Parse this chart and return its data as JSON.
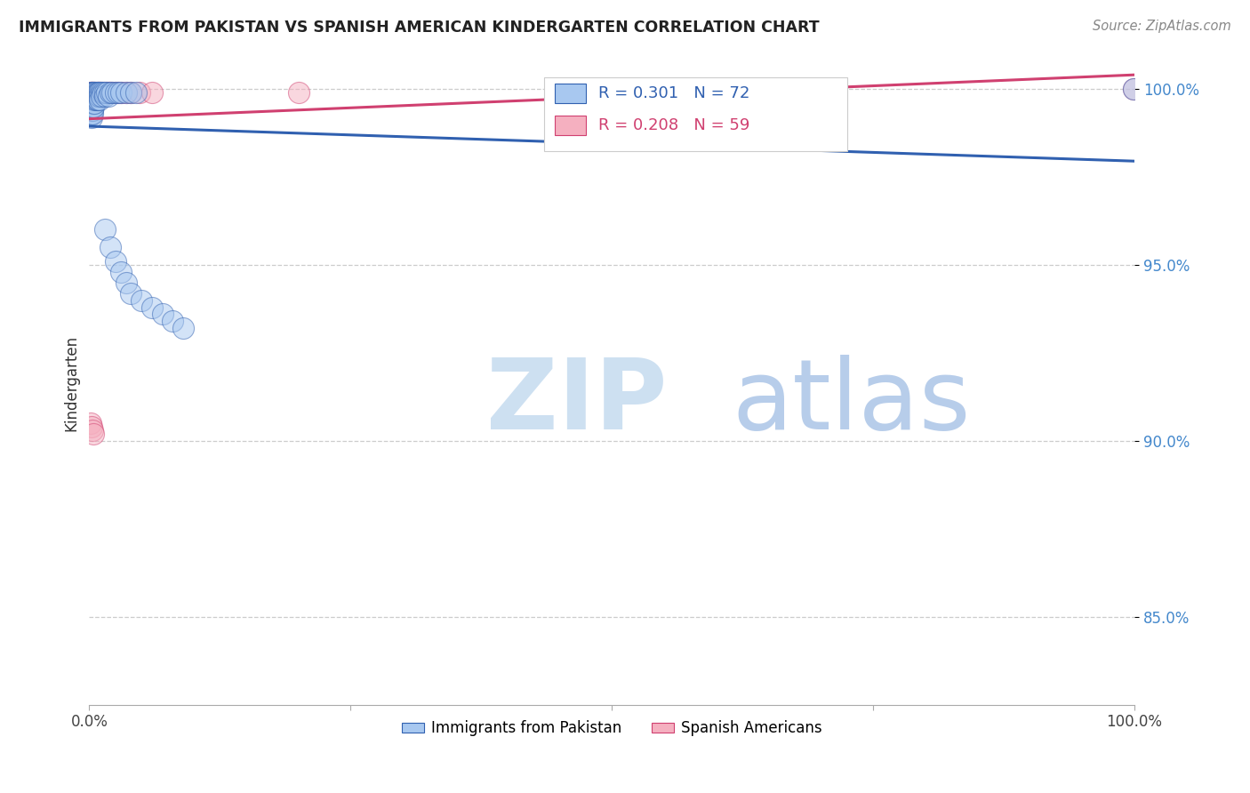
{
  "title": "IMMIGRANTS FROM PAKISTAN VS SPANISH AMERICAN KINDERGARTEN CORRELATION CHART",
  "source": "Source: ZipAtlas.com",
  "ylabel": "Kindergarten",
  "xlim": [
    0.0,
    1.0
  ],
  "ylim": [
    0.825,
    1.008
  ],
  "y_tick_labels": [
    "85.0%",
    "90.0%",
    "95.0%",
    "100.0%"
  ],
  "y_tick_values": [
    0.85,
    0.9,
    0.95,
    1.0
  ],
  "legend_label_blue": "Immigrants from Pakistan",
  "legend_label_pink": "Spanish Americans",
  "R_blue": 0.301,
  "N_blue": 72,
  "R_pink": 0.208,
  "N_pink": 59,
  "color_blue": "#a8c8f0",
  "color_pink": "#f5b0c0",
  "trendline_blue": "#3060b0",
  "trendline_pink": "#d04070",
  "watermark_zip": "ZIP",
  "watermark_atlas": "atlas",
  "watermark_color_zip": "#c8ddf0",
  "watermark_color_atlas": "#b0c8e8",
  "blue_x": [
    0.001,
    0.001,
    0.001,
    0.001,
    0.001,
    0.001,
    0.001,
    0.002,
    0.002,
    0.002,
    0.002,
    0.002,
    0.002,
    0.002,
    0.002,
    0.003,
    0.003,
    0.003,
    0.003,
    0.003,
    0.003,
    0.003,
    0.004,
    0.004,
    0.004,
    0.004,
    0.004,
    0.005,
    0.005,
    0.005,
    0.005,
    0.006,
    0.006,
    0.006,
    0.007,
    0.007,
    0.007,
    0.008,
    0.008,
    0.008,
    0.009,
    0.009,
    0.01,
    0.01,
    0.01,
    0.012,
    0.012,
    0.013,
    0.015,
    0.015,
    0.017,
    0.018,
    0.02,
    0.022,
    0.025,
    0.028,
    0.03,
    0.035,
    0.04,
    0.045,
    0.015,
    0.02,
    0.025,
    0.03,
    0.035,
    0.04,
    0.05,
    0.06,
    0.07,
    0.08,
    0.09,
    0.999
  ],
  "blue_y": [
    0.999,
    0.998,
    0.997,
    0.996,
    0.995,
    0.994,
    0.993,
    0.999,
    0.998,
    0.997,
    0.996,
    0.995,
    0.994,
    0.993,
    0.992,
    0.999,
    0.998,
    0.997,
    0.996,
    0.995,
    0.994,
    0.993,
    0.999,
    0.998,
    0.997,
    0.996,
    0.995,
    0.999,
    0.998,
    0.997,
    0.996,
    0.999,
    0.998,
    0.997,
    0.999,
    0.998,
    0.997,
    0.999,
    0.998,
    0.997,
    0.999,
    0.998,
    0.999,
    0.998,
    0.997,
    0.999,
    0.998,
    0.999,
    0.999,
    0.998,
    0.999,
    0.998,
    0.999,
    0.999,
    0.999,
    0.999,
    0.999,
    0.999,
    0.999,
    0.999,
    0.96,
    0.955,
    0.951,
    0.948,
    0.945,
    0.942,
    0.94,
    0.938,
    0.936,
    0.934,
    0.932,
    1.0
  ],
  "pink_x": [
    0.001,
    0.001,
    0.001,
    0.001,
    0.001,
    0.002,
    0.002,
    0.002,
    0.002,
    0.002,
    0.002,
    0.002,
    0.003,
    0.003,
    0.003,
    0.003,
    0.003,
    0.003,
    0.003,
    0.004,
    0.004,
    0.004,
    0.004,
    0.005,
    0.005,
    0.005,
    0.006,
    0.006,
    0.006,
    0.007,
    0.007,
    0.007,
    0.008,
    0.008,
    0.009,
    0.01,
    0.01,
    0.011,
    0.012,
    0.013,
    0.015,
    0.017,
    0.018,
    0.019,
    0.02,
    0.022,
    0.025,
    0.028,
    0.03,
    0.035,
    0.04,
    0.048,
    0.06,
    0.2,
    0.001,
    0.002,
    0.003,
    0.004,
    0.999
  ],
  "pink_y": [
    0.999,
    0.999,
    0.998,
    0.998,
    0.997,
    0.999,
    0.999,
    0.998,
    0.998,
    0.997,
    0.997,
    0.996,
    0.999,
    0.999,
    0.998,
    0.998,
    0.997,
    0.997,
    0.996,
    0.999,
    0.998,
    0.998,
    0.997,
    0.999,
    0.998,
    0.997,
    0.999,
    0.998,
    0.997,
    0.999,
    0.998,
    0.997,
    0.999,
    0.998,
    0.999,
    0.999,
    0.998,
    0.999,
    0.999,
    0.999,
    0.999,
    0.999,
    0.999,
    0.999,
    0.999,
    0.999,
    0.999,
    0.999,
    0.999,
    0.999,
    0.999,
    0.999,
    0.999,
    0.999,
    0.905,
    0.904,
    0.903,
    0.902,
    1.0
  ]
}
